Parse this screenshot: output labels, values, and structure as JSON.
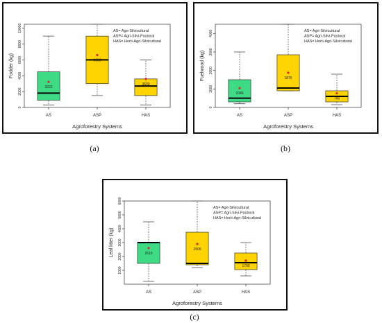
{
  "colors": {
    "green": "#3ddc84",
    "yellow": "#ffd400",
    "mean": "#e0282e",
    "edge": "#333333",
    "median": "#000000"
  },
  "captions": [
    "(a)",
    "(b)",
    "(c)"
  ],
  "chart_data": [
    {
      "type": "box",
      "xlabel": "Agroforestry Systems",
      "ylabel": "Fodder (kg)",
      "ylim": [
        0,
        10500
      ],
      "yticks": [
        0,
        2000,
        4000,
        6000,
        8000,
        10000
      ],
      "categories": [
        "AS",
        "ASP",
        "HAS"
      ],
      "legend": [
        "AS= Agri-Silvicultural",
        "ASP= Agri-Silvi-Pastoral",
        "HAS= Horti-Agri-Silvicultural"
      ],
      "boxes": [
        {
          "min": 300,
          "q1": 900,
          "median": 1800,
          "q3": 4500,
          "max": 9000,
          "mean": 3222,
          "mean_label": "3222",
          "color": "green"
        },
        {
          "min": 1500,
          "q1": 3000,
          "median": 6000,
          "q3": 9000,
          "max": 10500,
          "mean": 6606,
          "mean_label": "6606",
          "color": "yellow"
        },
        {
          "min": 300,
          "q1": 1500,
          "median": 2700,
          "q3": 3600,
          "max": 6000,
          "mean": 3600,
          "mean_label": "3600",
          "color": "yellow"
        }
      ]
    },
    {
      "type": "box",
      "xlabel": "Agroforestry Systems",
      "ylabel": "Fuelwood (kg)",
      "ylim": [
        0,
        4500
      ],
      "yticks": [
        0,
        1000,
        2000,
        3000,
        4000
      ],
      "categories": [
        "AS",
        "ASP",
        "HAS"
      ],
      "legend": [
        "AS= Agri-Silvicultural",
        "ASP= Agri-Silvi-Pastoral",
        "HAS= Horti-Agri-Silvicultural"
      ],
      "boxes": [
        {
          "min": 200,
          "q1": 300,
          "median": 500,
          "q3": 1500,
          "max": 3000,
          "mean": 1046,
          "mean_label": "1046",
          "color": "green"
        },
        {
          "min": 900,
          "q1": 900,
          "median": 1050,
          "q3": 2850,
          "max": 4500,
          "mean": 1875,
          "mean_label": "1875",
          "color": "yellow"
        },
        {
          "min": 150,
          "q1": 300,
          "median": 600,
          "q3": 900,
          "max": 1800,
          "mean": 766,
          "mean_label": "766",
          "color": "yellow"
        }
      ]
    },
    {
      "type": "box",
      "xlabel": "Agroforestry Systems",
      "ylabel": "Leaf litter (kg)",
      "ylim": [
        0,
        6000
      ],
      "yticks": [
        1000,
        2000,
        3000,
        4000,
        5000,
        6000
      ],
      "categories": [
        "AS",
        "ASP",
        "HAS"
      ],
      "legend": [
        "AS= Agri-Silvicultural",
        "ASP= Agri-Silvi-Pastoral",
        "HAS= Horti-Agri-Silvicultural"
      ],
      "boxes": [
        {
          "min": 200,
          "q1": 1500,
          "median": 3000,
          "q3": 3000,
          "max": 4500,
          "mean": 2610,
          "mean_label": "2610",
          "color": "green"
        },
        {
          "min": 1200,
          "q1": 1400,
          "median": 1500,
          "q3": 3750,
          "max": 6000,
          "mean": 2900,
          "mean_label": "2900",
          "color": "yellow"
        },
        {
          "min": 600,
          "q1": 1050,
          "median": 1550,
          "q3": 2250,
          "max": 3000,
          "mean": 1700,
          "mean_label": "1700",
          "color": "yellow"
        }
      ]
    }
  ]
}
